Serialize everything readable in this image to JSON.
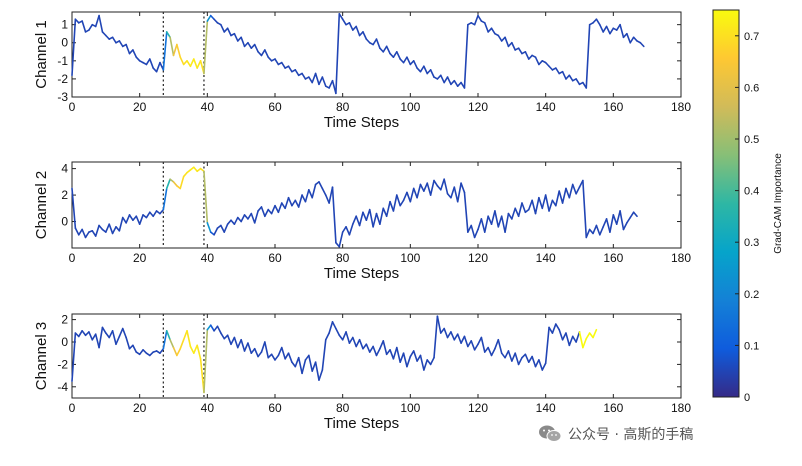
{
  "chart_data": {
    "type": "line",
    "colormap": "parula",
    "colorbar": {
      "label": "Grad-CAM Importance",
      "range": [
        0,
        0.75
      ],
      "ticks": [
        0,
        0.1,
        0.2,
        0.3,
        0.4,
        0.5,
        0.6,
        0.7
      ],
      "tick_labels": [
        "0",
        "0.1",
        "0.2",
        "0.3",
        "0.4",
        "0.5",
        "0.6",
        "0.7"
      ],
      "placement": "right"
    },
    "vlines": [
      27,
      39
    ],
    "panels": [
      {
        "ylabel": "Channel 1",
        "xlabel": "Time Steps",
        "xlim": [
          0,
          180
        ],
        "ylim": [
          -3,
          1.7
        ],
        "xticks": [
          0,
          20,
          40,
          60,
          80,
          100,
          120,
          140,
          160,
          180
        ],
        "yticks": [
          -3,
          -2,
          -1,
          0,
          1
        ],
        "y": [
          -1.8,
          1.3,
          1.1,
          1.2,
          0.6,
          0.7,
          1.0,
          0.9,
          1.5,
          0.6,
          0.4,
          0.2,
          0.3,
          0.0,
          0.1,
          -0.2,
          -0.1,
          -0.6,
          -0.4,
          -0.8,
          -1.0,
          -1.1,
          -1.2,
          -0.9,
          -1.4,
          -1.6,
          -1.1,
          -1.5,
          0.6,
          0.3,
          -0.7,
          -0.1,
          -0.8,
          -1.2,
          -1.0,
          -1.3,
          -0.9,
          -1.4,
          -1.0,
          -1.7,
          1.2,
          1.5,
          1.3,
          1.1,
          1.0,
          0.6,
          0.8,
          0.4,
          0.5,
          0.1,
          0.3,
          -0.2,
          0.0,
          -0.3,
          -0.1,
          -0.5,
          -0.7,
          -0.4,
          -0.8,
          -1.0,
          -0.9,
          -1.2,
          -1.1,
          -1.4,
          -1.3,
          -1.6,
          -1.5,
          -1.8,
          -1.7,
          -2.0,
          -1.9,
          -2.2,
          -1.7,
          -2.3,
          -1.9,
          -2.4,
          -2.5,
          -2.1,
          -2.8,
          1.6,
          1.3,
          1.0,
          1.1,
          0.7,
          0.9,
          0.4,
          0.6,
          0.2,
          0.0,
          -0.1,
          0.2,
          -0.3,
          -0.5,
          -0.2,
          -0.6,
          -0.8,
          -0.5,
          -0.9,
          -1.1,
          -0.8,
          -1.2,
          -1.0,
          -1.4,
          -1.6,
          -1.3,
          -1.7,
          -1.5,
          -1.9,
          -2.0,
          -1.8,
          -2.2,
          -1.9,
          -2.3,
          -2.1,
          -2.4,
          -2.2,
          -2.5,
          1.0,
          1.1,
          1.0,
          1.5,
          1.2,
          1.1,
          0.6,
          0.8,
          0.5,
          0.4,
          0.1,
          0.3,
          -0.2,
          0.0,
          -0.4,
          -0.3,
          -0.6,
          -0.5,
          -0.9,
          -0.7,
          -0.8,
          -1.2,
          -1.0,
          -1.1,
          -1.3,
          -1.5,
          -1.4,
          -1.7,
          -1.6,
          -2.0,
          -1.8,
          -2.1,
          -2.0,
          -2.3,
          -2.2,
          -2.5,
          1.0,
          1.1,
          1.3,
          1.0,
          0.6,
          0.9,
          0.5,
          0.8,
          0.7,
          1.0,
          0.3,
          0.5,
          0.0,
          0.3,
          0.1,
          0.0,
          -0.2
        ],
        "importance": [
          0.05,
          0.05,
          0.05,
          0.05,
          0.05,
          0.05,
          0.05,
          0.05,
          0.05,
          0.05,
          0.05,
          0.05,
          0.05,
          0.05,
          0.05,
          0.05,
          0.05,
          0.05,
          0.05,
          0.05,
          0.05,
          0.05,
          0.05,
          0.05,
          0.05,
          0.05,
          0.05,
          0.05,
          0.25,
          0.45,
          0.6,
          0.65,
          0.68,
          0.7,
          0.7,
          0.72,
          0.72,
          0.72,
          0.7,
          0.7,
          0.35,
          0.12,
          0.05,
          0.05,
          0.05,
          0.05,
          0.05,
          0.05,
          0.05,
          0.05,
          0.05,
          0.05,
          0.05,
          0.05,
          0.05,
          0.05,
          0.05,
          0.05,
          0.05,
          0.05,
          0.05,
          0.05,
          0.05,
          0.05,
          0.05,
          0.05,
          0.05,
          0.05,
          0.05,
          0.05,
          0.05,
          0.05,
          0.05,
          0.05,
          0.05,
          0.05,
          0.05,
          0.05,
          0.05,
          0.05,
          0.05,
          0.05,
          0.05,
          0.05,
          0.05,
          0.05,
          0.05,
          0.05,
          0.05,
          0.05,
          0.05,
          0.05,
          0.05,
          0.05,
          0.05,
          0.05,
          0.05,
          0.05,
          0.05,
          0.05,
          0.05,
          0.05,
          0.05,
          0.05,
          0.05,
          0.05,
          0.05,
          0.05,
          0.05,
          0.05,
          0.05,
          0.05,
          0.05,
          0.05,
          0.05,
          0.05,
          0.05,
          0.05,
          0.05,
          0.05,
          0.05,
          0.05,
          0.05,
          0.05,
          0.05,
          0.05,
          0.05,
          0.05,
          0.05,
          0.05,
          0.05,
          0.05,
          0.05,
          0.05,
          0.05,
          0.05,
          0.05,
          0.05,
          0.05,
          0.05,
          0.05,
          0.05,
          0.05,
          0.05,
          0.05,
          0.05,
          0.05,
          0.05,
          0.05,
          0.05,
          0.05,
          0.05,
          0.05,
          0.05,
          0.05,
          0.05,
          0.05,
          0.05,
          0.05,
          0.05,
          0.05,
          0.05,
          0.05,
          0.05,
          0.05,
          0.05,
          0.05,
          0.05,
          0.05,
          0.05,
          0.05,
          0.05,
          0.05
        ]
      },
      {
        "ylabel": "Channel 2",
        "xlabel": "Time Steps",
        "xlim": [
          0,
          180
        ],
        "ylim": [
          -2,
          4.5
        ],
        "xticks": [
          0,
          20,
          40,
          60,
          80,
          100,
          120,
          140,
          160,
          180
        ],
        "yticks": [
          0,
          2,
          4
        ],
        "y": [
          2.5,
          -0.5,
          -1.0,
          -0.6,
          -1.2,
          -0.8,
          -0.7,
          -1.1,
          -0.3,
          -0.6,
          -0.8,
          -0.2,
          -0.9,
          -0.4,
          -0.7,
          0.3,
          -0.1,
          0.5,
          0.1,
          0.4,
          -0.2,
          0.5,
          0.3,
          0.7,
          0.4,
          0.8,
          0.6,
          0.9,
          2.5,
          3.2,
          3.0,
          2.7,
          2.5,
          3.4,
          3.7,
          3.9,
          4.1,
          3.8,
          4.0,
          3.8,
          -0.1,
          -0.8,
          -1.0,
          -0.5,
          -0.3,
          -0.8,
          -0.2,
          0.1,
          -0.2,
          0.3,
          0.0,
          0.5,
          0.2,
          0.6,
          -0.1,
          0.8,
          1.1,
          0.4,
          0.9,
          0.6,
          1.2,
          0.7,
          1.4,
          1.0,
          1.8,
          1.2,
          1.6,
          1.1,
          2.0,
          1.5,
          2.4,
          1.8,
          2.8,
          3.0,
          2.5,
          2.0,
          1.4,
          2.6,
          -1.6,
          -1.9,
          -0.8,
          -0.4,
          -1.0,
          -0.2,
          0.4,
          -0.3,
          0.7,
          0.1,
          0.9,
          -0.4,
          0.6,
          -0.2,
          1.0,
          0.4,
          1.5,
          0.8,
          2.0,
          1.2,
          1.6,
          2.2,
          1.5,
          2.5,
          1.8,
          2.8,
          2.3,
          2.9,
          2.0,
          3.1,
          2.7,
          2.4,
          3.2,
          2.1,
          1.8,
          2.6,
          1.5,
          2.9,
          2.2,
          -0.8,
          -0.3,
          -1.2,
          -0.6,
          0.2,
          -0.8,
          0.4,
          -0.2,
          0.8,
          -0.4,
          0.4,
          -0.8,
          0.6,
          0.2,
          1.0,
          0.4,
          1.4,
          0.7,
          0.9,
          1.6,
          0.6,
          1.8,
          1.0,
          2.0,
          0.8,
          1.6,
          1.2,
          2.3,
          1.4,
          2.5,
          1.8,
          2.8,
          2.1,
          2.6,
          3.1,
          -1.2,
          -0.6,
          -0.9,
          -0.3,
          -1.0,
          -0.4,
          0.2,
          -0.8,
          0.5,
          -0.2,
          0.8,
          -0.6,
          -0.1,
          0.3,
          0.7,
          0.4
        ],
        "importance": [
          0.05,
          0.05,
          0.05,
          0.05,
          0.05,
          0.05,
          0.05,
          0.05,
          0.05,
          0.05,
          0.05,
          0.05,
          0.05,
          0.05,
          0.05,
          0.05,
          0.05,
          0.05,
          0.05,
          0.05,
          0.05,
          0.05,
          0.05,
          0.05,
          0.05,
          0.05,
          0.05,
          0.05,
          0.25,
          0.45,
          0.6,
          0.65,
          0.68,
          0.7,
          0.7,
          0.72,
          0.72,
          0.72,
          0.7,
          0.7,
          0.35,
          0.12,
          0.05,
          0.05,
          0.05,
          0.05,
          0.05,
          0.05,
          0.05,
          0.05,
          0.05,
          0.05,
          0.05,
          0.05,
          0.05,
          0.05,
          0.05,
          0.05,
          0.05,
          0.05,
          0.05,
          0.05,
          0.05,
          0.05,
          0.05,
          0.05,
          0.05,
          0.05,
          0.05,
          0.05,
          0.05,
          0.05,
          0.05,
          0.05,
          0.05,
          0.05,
          0.05,
          0.05,
          0.05,
          0.05,
          0.05,
          0.05,
          0.05,
          0.05,
          0.05,
          0.05,
          0.05,
          0.05,
          0.05,
          0.05,
          0.05,
          0.05,
          0.05,
          0.05,
          0.05,
          0.05,
          0.05,
          0.05,
          0.05,
          0.05,
          0.05,
          0.05,
          0.05,
          0.05,
          0.05,
          0.05,
          0.05,
          0.05,
          0.05,
          0.05,
          0.05,
          0.05,
          0.05,
          0.05,
          0.05,
          0.05,
          0.05,
          0.05,
          0.05,
          0.05,
          0.05,
          0.05,
          0.05,
          0.05,
          0.05,
          0.05,
          0.05,
          0.05,
          0.05,
          0.05,
          0.05,
          0.05,
          0.05,
          0.05,
          0.05,
          0.05,
          0.05,
          0.05,
          0.05,
          0.05,
          0.05,
          0.05,
          0.05,
          0.05,
          0.05,
          0.05,
          0.05,
          0.05,
          0.05,
          0.05,
          0.05,
          0.05,
          0.05,
          0.05,
          0.05,
          0.05,
          0.05,
          0.05,
          0.05,
          0.05,
          0.05,
          0.05,
          0.05,
          0.05,
          0.05,
          0.05,
          0.05,
          0.05,
          0.05,
          0.05,
          0.05,
          0.05,
          0.05
        ]
      },
      {
        "ylabel": "Channel 3",
        "xlabel": "Time Steps",
        "xlim": [
          0,
          180
        ],
        "ylim": [
          -5,
          2.5
        ],
        "xticks": [
          0,
          20,
          40,
          60,
          80,
          100,
          120,
          140,
          160,
          180
        ],
        "yticks": [
          -4,
          -2,
          0,
          2
        ],
        "y": [
          -3.5,
          0.8,
          0.5,
          1.0,
          0.6,
          0.9,
          0.2,
          0.7,
          -0.5,
          1.3,
          0.8,
          0.4,
          1.0,
          -0.2,
          0.5,
          1.2,
          0.4,
          -0.6,
          -0.3,
          -0.9,
          -1.1,
          -0.7,
          -1.0,
          -1.2,
          -0.9,
          -0.8,
          -1.0,
          -0.6,
          1.0,
          0.2,
          -0.5,
          -1.2,
          -0.6,
          0.2,
          1.0,
          -0.4,
          -1.0,
          -0.3,
          -1.5,
          -4.5,
          1.1,
          1.5,
          1.0,
          1.4,
          0.8,
          0.3,
          0.6,
          -0.2,
          0.4,
          -0.5,
          0.2,
          -0.8,
          -0.1,
          -1.0,
          -0.6,
          -1.3,
          -0.9,
          0.0,
          -1.4,
          -1.1,
          -1.6,
          -1.2,
          -0.5,
          -1.5,
          -1.0,
          -1.8,
          -2.2,
          -1.4,
          -2.8,
          -1.6,
          -1.2,
          -2.6,
          -1.8,
          -3.4,
          -2.5,
          0.2,
          0.8,
          1.8,
          1.2,
          0.6,
          0.2,
          0.9,
          -0.1,
          0.4,
          -0.4,
          0.2,
          -0.6,
          -0.2,
          -0.9,
          -0.4,
          -1.2,
          -0.6,
          0.1,
          -1.1,
          -0.7,
          -1.5,
          -0.5,
          -1.8,
          -1.0,
          -2.2,
          -1.3,
          -0.8,
          -1.7,
          -1.2,
          -2.5,
          -1.6,
          -2.0,
          -1.4,
          2.3,
          0.8,
          1.2,
          0.4,
          0.9,
          0.2,
          0.7,
          -0.1,
          0.5,
          -0.4,
          0.1,
          -0.7,
          -0.2,
          0.4,
          -0.9,
          -0.5,
          -1.2,
          -0.6,
          0.2,
          -1.0,
          -1.4,
          -0.8,
          -1.7,
          -1.0,
          -2.0,
          -1.4,
          -1.1,
          -1.8,
          -1.3,
          -2.2,
          -1.6,
          -2.5,
          -1.9,
          1.3,
          0.8,
          1.6,
          1.1,
          0.2,
          0.8,
          -0.3,
          0.5,
          0.0,
          0.9,
          -0.5,
          0.3,
          0.8,
          0.4,
          1.1
        ],
        "importance": [
          0.05,
          0.05,
          0.05,
          0.05,
          0.05,
          0.05,
          0.05,
          0.05,
          0.05,
          0.05,
          0.05,
          0.05,
          0.05,
          0.05,
          0.05,
          0.05,
          0.05,
          0.05,
          0.05,
          0.05,
          0.05,
          0.05,
          0.05,
          0.05,
          0.05,
          0.05,
          0.05,
          0.05,
          0.25,
          0.45,
          0.6,
          0.65,
          0.68,
          0.7,
          0.7,
          0.72,
          0.72,
          0.72,
          0.7,
          0.7,
          0.35,
          0.12,
          0.05,
          0.05,
          0.05,
          0.05,
          0.05,
          0.05,
          0.05,
          0.05,
          0.05,
          0.05,
          0.05,
          0.05,
          0.05,
          0.05,
          0.05,
          0.05,
          0.05,
          0.05,
          0.05,
          0.05,
          0.05,
          0.05,
          0.05,
          0.05,
          0.05,
          0.05,
          0.05,
          0.05,
          0.05,
          0.05,
          0.05,
          0.05,
          0.05,
          0.05,
          0.05,
          0.05,
          0.05,
          0.05,
          0.05,
          0.05,
          0.05,
          0.05,
          0.05,
          0.05,
          0.05,
          0.05,
          0.05,
          0.05,
          0.05,
          0.05,
          0.05,
          0.05,
          0.05,
          0.05,
          0.05,
          0.05,
          0.05,
          0.05,
          0.05,
          0.05,
          0.05,
          0.05,
          0.05,
          0.05,
          0.05,
          0.05,
          0.05,
          0.05,
          0.05,
          0.05,
          0.05,
          0.05,
          0.05,
          0.05,
          0.05,
          0.05,
          0.05,
          0.05,
          0.05,
          0.05,
          0.05,
          0.05,
          0.05,
          0.05,
          0.05,
          0.05,
          0.05,
          0.05,
          0.05,
          0.05,
          0.05,
          0.05,
          0.05,
          0.05,
          0.05,
          0.05,
          0.05,
          0.05,
          0.05,
          0.05,
          0.05,
          0.05,
          0.05,
          0.05,
          0.05,
          0.05,
          0.05,
          0.05,
          0.05
        ]
      }
    ]
  },
  "watermark": {
    "text": "公众号 · 高斯的手稿",
    "icon": "wechat-icon"
  }
}
